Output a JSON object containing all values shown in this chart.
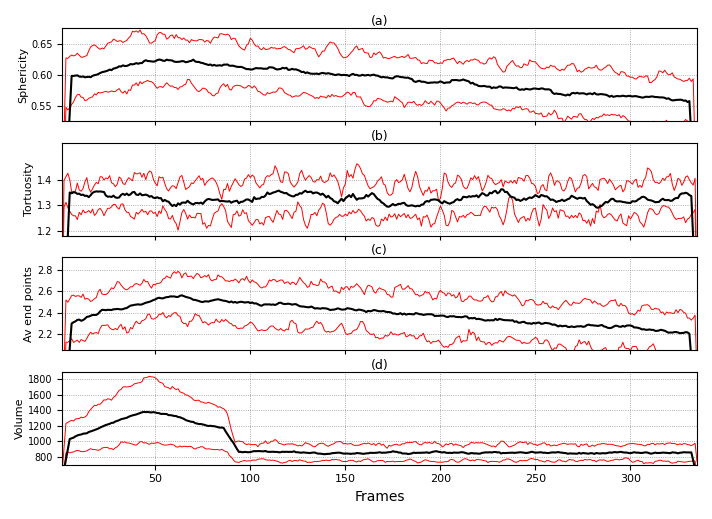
{
  "title_a": "(a)",
  "title_b": "(b)",
  "title_c": "(c)",
  "title_d": "(d)",
  "xlabel": "Frames",
  "ylabel_a": "Sphericity",
  "ylabel_b": "Tortuosity",
  "ylabel_c": "Av end points",
  "ylabel_d": "Volume",
  "n_frames": 335,
  "black_lw": 1.5,
  "red_lw": 0.7,
  "black_color": "#000000",
  "red_color": "#ff0000",
  "background": "#ffffff",
  "ylim_a": [
    0.525,
    0.675
  ],
  "yticks_a": [
    0.55,
    0.6,
    0.65
  ],
  "ylim_b": [
    1.18,
    1.55
  ],
  "yticks_b": [
    1.2,
    1.3,
    1.4
  ],
  "ylim_c": [
    2.05,
    2.92
  ],
  "yticks_c": [
    2.2,
    2.4,
    2.6,
    2.8
  ],
  "ylim_d": [
    700,
    1900
  ],
  "yticks_d": [
    800,
    1000,
    1200,
    1400,
    1600,
    1800
  ],
  "xticks": [
    50,
    100,
    150,
    200,
    250,
    300
  ],
  "seed": 42
}
